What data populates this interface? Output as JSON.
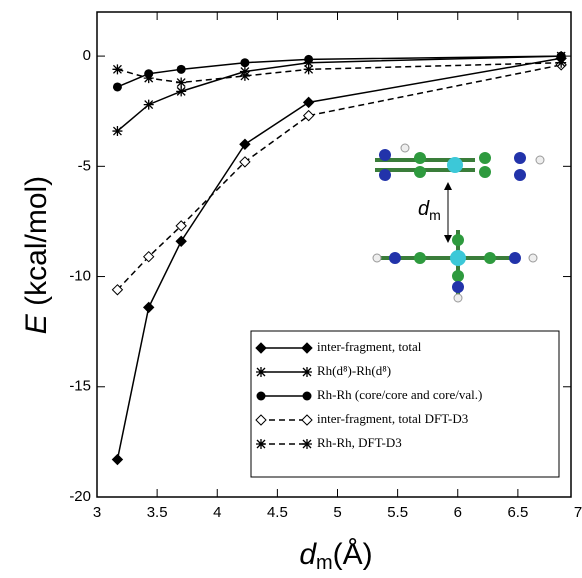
{
  "chart_data": {
    "type": "line",
    "ylabel": [
      "E",
      "(kcal/mol)"
    ],
    "xlabel": [
      "d",
      "m",
      "(Å)"
    ],
    "inset_label": [
      "d",
      "m"
    ],
    "x": [
      3.17,
      3.43,
      3.7,
      4.23,
      4.76,
      6.86
    ],
    "xlim": [
      3,
      7
    ],
    "xticks": [
      3,
      3.5,
      4,
      4.5,
      5,
      5.5,
      6,
      6.5,
      7
    ],
    "ylim": [
      -20,
      2
    ],
    "yticks": [
      0,
      -5,
      -10,
      -15,
      -20
    ],
    "legend": "lower right",
    "series": [
      {
        "name": "inter-fragment, total",
        "color": "#000000",
        "dash": false,
        "marker": "diamond",
        "values": [
          -18.3,
          -11.4,
          -8.4,
          -4.0,
          -2.1,
          -0.1
        ]
      },
      {
        "name": "Rh(d⁸)-Rh(d⁸)",
        "color": "#000000",
        "dash": false,
        "marker": "star",
        "values": [
          -3.4,
          -2.2,
          -1.6,
          -0.7,
          -0.3,
          0
        ]
      },
      {
        "name": "Rh-Rh (core/core and core/val.)",
        "color": "#000000",
        "dash": false,
        "marker": "circle",
        "values": [
          -1.4,
          -0.8,
          -0.6,
          -0.3,
          -0.15,
          0
        ]
      },
      {
        "name": "inter-fragment, total DFT-D3",
        "color": "#000000",
        "dash": true,
        "marker": "open-diamond",
        "values": [
          -10.6,
          -9.1,
          -7.7,
          -4.8,
          -2.7,
          -0.4
        ]
      },
      {
        "name": "Rh-Rh, DFT-D3",
        "color": "#000000",
        "dash": true,
        "marker": "star",
        "values": [
          -0.6,
          -1.0,
          -1.2,
          -0.9,
          -0.6,
          -0.3
        ]
      }
    ]
  }
}
